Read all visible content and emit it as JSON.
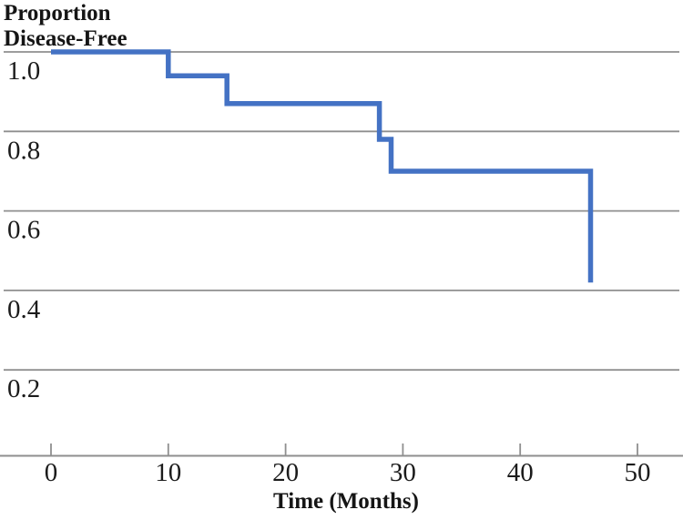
{
  "figure": {
    "y_axis_title_line1": "Proportion",
    "y_axis_title_line2": "Disease-Free",
    "x_axis_title": "Time (Months)"
  },
  "chart_data": {
    "type": "line",
    "subtype": "step-function-kaplan-meier",
    "title": "",
    "ylabel": "Proportion Disease-Free",
    "xlabel": "Time (Months)",
    "x_ticks": [
      0,
      10,
      20,
      30,
      40,
      50
    ],
    "x_tick_labels": [
      "0",
      "10",
      "20",
      "30",
      "40",
      "50"
    ],
    "y_ticks": [
      1.0,
      0.8,
      0.6,
      0.4,
      0.2
    ],
    "y_tick_labels": [
      "1.0",
      "0.8",
      "0.6",
      "0.4",
      "0.2"
    ],
    "xlim": [
      0,
      54
    ],
    "ylim": [
      0,
      1.0
    ],
    "grid": "horizontal-only",
    "legend": "none",
    "colors": {
      "line": "#4472c4",
      "grid": "#8f8f8f",
      "text": "#1b1b1b"
    },
    "series": [
      {
        "name": "proportion-disease-free",
        "event_times_months": [
          10,
          15,
          28,
          29,
          46
        ],
        "level_after_each_event": [
          0.94,
          0.87,
          0.78,
          0.7,
          0.42
        ],
        "step_points": [
          {
            "x": 0,
            "y": 1.0
          },
          {
            "x": 10,
            "y": 1.0
          },
          {
            "x": 10,
            "y": 0.94
          },
          {
            "x": 15,
            "y": 0.94
          },
          {
            "x": 15,
            "y": 0.87
          },
          {
            "x": 28,
            "y": 0.87
          },
          {
            "x": 28,
            "y": 0.78
          },
          {
            "x": 29,
            "y": 0.78
          },
          {
            "x": 29,
            "y": 0.7
          },
          {
            "x": 46,
            "y": 0.7
          },
          {
            "x": 46,
            "y": 0.42
          }
        ]
      }
    ]
  }
}
